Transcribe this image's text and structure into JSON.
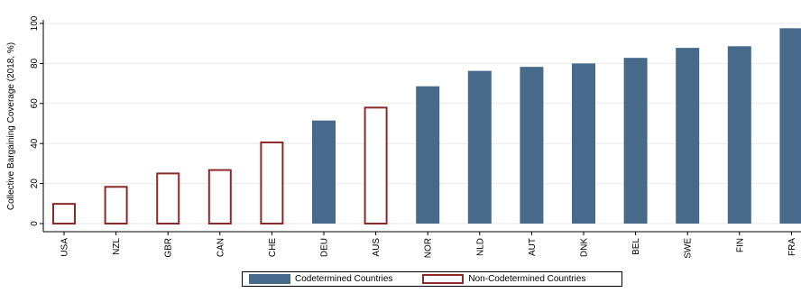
{
  "chart_data": {
    "type": "bar",
    "ylabel": "Collective Bargaining Coverage (2018, %)",
    "ylim": [
      0,
      100
    ],
    "yticks": [
      0,
      20,
      40,
      60,
      80,
      100
    ],
    "grid": true,
    "categories": [
      "USA",
      "NZL",
      "GBR",
      "CAN",
      "CHE",
      "DEU",
      "AUS",
      "NOR",
      "NLD",
      "AUT",
      "DNK",
      "BEL",
      "SWE",
      "FIN",
      "FRA"
    ],
    "values": [
      10.3,
      18.8,
      25.5,
      27.2,
      41.0,
      51.5,
      58.4,
      68.6,
      76.3,
      78.3,
      80.0,
      82.8,
      87.8,
      88.6,
      97.6
    ],
    "group": [
      "non",
      "non",
      "non",
      "non",
      "non",
      "co",
      "non",
      "co",
      "co",
      "co",
      "co",
      "co",
      "co",
      "co",
      "co"
    ],
    "series": [
      {
        "key": "co",
        "name": "Codetermined Countries",
        "color": "#476a8a",
        "style": "filled"
      },
      {
        "key": "non",
        "name": "Non-Codetermined Countries",
        "color": "#8c2a2a",
        "style": "hollow"
      }
    ],
    "legend_position": "bottom"
  }
}
